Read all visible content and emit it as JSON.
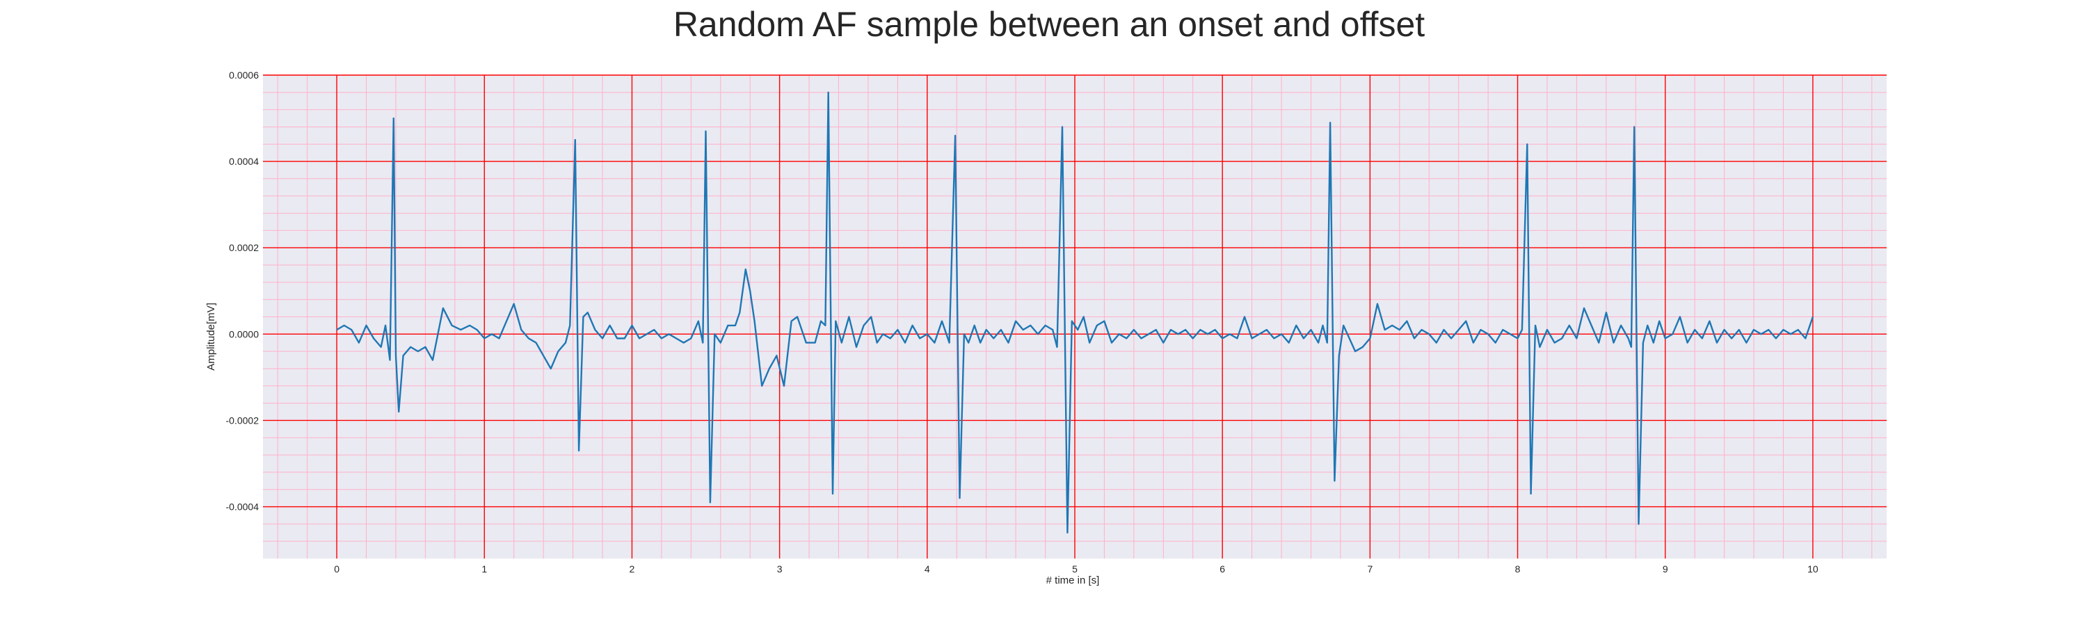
{
  "chart_data": {
    "type": "line",
    "title": "Random AF sample between an onset and offset",
    "xlabel": "# time in [s]",
    "ylabel": "Amplitude[mV]",
    "xlim": [
      -0.5,
      10.5
    ],
    "ylim": [
      -0.00052,
      0.0006
    ],
    "x_ticks": [
      0,
      1,
      2,
      3,
      4,
      5,
      6,
      7,
      8,
      9,
      10
    ],
    "x_tick_labels": [
      "0",
      "1",
      "2",
      "3",
      "4",
      "5",
      "6",
      "7",
      "8",
      "9",
      "10"
    ],
    "y_ticks": [
      0.0006,
      0.0004,
      0.0002,
      0.0,
      -0.0002,
      -0.0004
    ],
    "y_tick_labels": [
      "0.0006",
      "0.0004",
      "0.0002",
      "0.0000",
      "-0.0002",
      "-0.0004"
    ],
    "grid": true,
    "minor_grid": true,
    "legend": "none",
    "colors": {
      "line": "#1f77b4",
      "plot_background": "#eaeaf2",
      "major_grid": "#ff0000",
      "minor_grid": "#ffb0c8"
    },
    "series": [
      {
        "points": [
          [
            0.0,
            1e-05
          ],
          [
            0.05,
            2e-05
          ],
          [
            0.1,
            1e-05
          ],
          [
            0.15,
            -2e-05
          ],
          [
            0.2,
            2e-05
          ],
          [
            0.25,
            -1e-05
          ],
          [
            0.3,
            -3e-05
          ],
          [
            0.33,
            2e-05
          ],
          [
            0.36,
            -6e-05
          ],
          [
            0.385,
            0.0005
          ],
          [
            0.4,
            -5e-05
          ],
          [
            0.42,
            -0.00018
          ],
          [
            0.45,
            -5e-05
          ],
          [
            0.5,
            -3e-05
          ],
          [
            0.55,
            -4e-05
          ],
          [
            0.6,
            -3e-05
          ],
          [
            0.65,
            -6e-05
          ],
          [
            0.72,
            6e-05
          ],
          [
            0.78,
            2e-05
          ],
          [
            0.84,
            1e-05
          ],
          [
            0.9,
            2e-05
          ],
          [
            0.95,
            1e-05
          ],
          [
            1.0,
            -1e-05
          ],
          [
            1.05,
            0.0
          ],
          [
            1.1,
            -1e-05
          ],
          [
            1.15,
            3e-05
          ],
          [
            1.2,
            7e-05
          ],
          [
            1.25,
            1e-05
          ],
          [
            1.3,
            -1e-05
          ],
          [
            1.35,
            -2e-05
          ],
          [
            1.4,
            -5e-05
          ],
          [
            1.45,
            -8e-05
          ],
          [
            1.5,
            -4e-05
          ],
          [
            1.55,
            -2e-05
          ],
          [
            1.58,
            2e-05
          ],
          [
            1.615,
            0.00045
          ],
          [
            1.64,
            -0.00027
          ],
          [
            1.67,
            4e-05
          ],
          [
            1.7,
            5e-05
          ],
          [
            1.75,
            1e-05
          ],
          [
            1.8,
            -1e-05
          ],
          [
            1.85,
            2e-05
          ],
          [
            1.9,
            -1e-05
          ],
          [
            1.95,
            -1e-05
          ],
          [
            2.0,
            2e-05
          ],
          [
            2.05,
            -1e-05
          ],
          [
            2.1,
            0.0
          ],
          [
            2.15,
            1e-05
          ],
          [
            2.2,
            -1e-05
          ],
          [
            2.25,
            0.0
          ],
          [
            2.3,
            -1e-05
          ],
          [
            2.35,
            -2e-05
          ],
          [
            2.4,
            -1e-05
          ],
          [
            2.45,
            3e-05
          ],
          [
            2.48,
            -2e-05
          ],
          [
            2.5,
            0.00047
          ],
          [
            2.53,
            -0.00039
          ],
          [
            2.56,
            0.0
          ],
          [
            2.6,
            -2e-05
          ],
          [
            2.65,
            2e-05
          ],
          [
            2.7,
            2e-05
          ],
          [
            2.73,
            5e-05
          ],
          [
            2.77,
            0.00015
          ],
          [
            2.8,
            0.0001
          ],
          [
            2.83,
            3e-05
          ],
          [
            2.88,
            -0.00012
          ],
          [
            2.93,
            -8e-05
          ],
          [
            2.98,
            -5e-05
          ],
          [
            3.03,
            -0.00012
          ],
          [
            3.08,
            3e-05
          ],
          [
            3.12,
            4e-05
          ],
          [
            3.18,
            -2e-05
          ],
          [
            3.24,
            -2e-05
          ],
          [
            3.28,
            3e-05
          ],
          [
            3.31,
            2e-05
          ],
          [
            3.33,
            0.00056
          ],
          [
            3.36,
            -0.00037
          ],
          [
            3.38,
            3e-05
          ],
          [
            3.42,
            -2e-05
          ],
          [
            3.47,
            4e-05
          ],
          [
            3.52,
            -3e-05
          ],
          [
            3.57,
            2e-05
          ],
          [
            3.62,
            4e-05
          ],
          [
            3.66,
            -2e-05
          ],
          [
            3.7,
            0.0
          ],
          [
            3.75,
            -1e-05
          ],
          [
            3.8,
            1e-05
          ],
          [
            3.85,
            -2e-05
          ],
          [
            3.9,
            2e-05
          ],
          [
            3.95,
            -1e-05
          ],
          [
            4.0,
            0.0
          ],
          [
            4.05,
            -2e-05
          ],
          [
            4.1,
            3e-05
          ],
          [
            4.15,
            -2e-05
          ],
          [
            4.19,
            0.00046
          ],
          [
            4.22,
            -0.00038
          ],
          [
            4.25,
            0.0
          ],
          [
            4.28,
            -2e-05
          ],
          [
            4.32,
            2e-05
          ],
          [
            4.36,
            -2e-05
          ],
          [
            4.4,
            1e-05
          ],
          [
            4.45,
            -1e-05
          ],
          [
            4.5,
            1e-05
          ],
          [
            4.55,
            -2e-05
          ],
          [
            4.6,
            3e-05
          ],
          [
            4.65,
            1e-05
          ],
          [
            4.7,
            2e-05
          ],
          [
            4.75,
            0.0
          ],
          [
            4.8,
            2e-05
          ],
          [
            4.85,
            1e-05
          ],
          [
            4.88,
            -3e-05
          ],
          [
            4.915,
            0.00048
          ],
          [
            4.95,
            -0.00046
          ],
          [
            4.98,
            3e-05
          ],
          [
            5.02,
            1e-05
          ],
          [
            5.06,
            4e-05
          ],
          [
            5.1,
            -2e-05
          ],
          [
            5.15,
            2e-05
          ],
          [
            5.2,
            3e-05
          ],
          [
            5.25,
            -2e-05
          ],
          [
            5.3,
            0.0
          ],
          [
            5.35,
            -1e-05
          ],
          [
            5.4,
            1e-05
          ],
          [
            5.45,
            -1e-05
          ],
          [
            5.5,
            0.0
          ],
          [
            5.55,
            1e-05
          ],
          [
            5.6,
            -2e-05
          ],
          [
            5.65,
            1e-05
          ],
          [
            5.7,
            0.0
          ],
          [
            5.75,
            1e-05
          ],
          [
            5.8,
            -1e-05
          ],
          [
            5.85,
            1e-05
          ],
          [
            5.9,
            0.0
          ],
          [
            5.95,
            1e-05
          ],
          [
            6.0,
            -1e-05
          ],
          [
            6.05,
            0.0
          ],
          [
            6.1,
            -1e-05
          ],
          [
            6.15,
            4e-05
          ],
          [
            6.2,
            -1e-05
          ],
          [
            6.25,
            0.0
          ],
          [
            6.3,
            1e-05
          ],
          [
            6.35,
            -1e-05
          ],
          [
            6.4,
            0.0
          ],
          [
            6.45,
            -2e-05
          ],
          [
            6.5,
            2e-05
          ],
          [
            6.55,
            -1e-05
          ],
          [
            6.6,
            1e-05
          ],
          [
            6.65,
            -2e-05
          ],
          [
            6.68,
            2e-05
          ],
          [
            6.71,
            -2e-05
          ],
          [
            6.73,
            0.00049
          ],
          [
            6.76,
            -0.00034
          ],
          [
            6.79,
            -5e-05
          ],
          [
            6.82,
            2e-05
          ],
          [
            6.86,
            -1e-05
          ],
          [
            6.9,
            -4e-05
          ],
          [
            6.95,
            -3e-05
          ],
          [
            7.0,
            -1e-05
          ],
          [
            7.05,
            7e-05
          ],
          [
            7.1,
            1e-05
          ],
          [
            7.15,
            2e-05
          ],
          [
            7.2,
            1e-05
          ],
          [
            7.25,
            3e-05
          ],
          [
            7.3,
            -1e-05
          ],
          [
            7.35,
            1e-05
          ],
          [
            7.4,
            0.0
          ],
          [
            7.45,
            -2e-05
          ],
          [
            7.5,
            1e-05
          ],
          [
            7.55,
            -1e-05
          ],
          [
            7.6,
            1e-05
          ],
          [
            7.65,
            3e-05
          ],
          [
            7.7,
            -2e-05
          ],
          [
            7.75,
            1e-05
          ],
          [
            7.8,
            0.0
          ],
          [
            7.85,
            -2e-05
          ],
          [
            7.9,
            1e-05
          ],
          [
            7.95,
            0.0
          ],
          [
            8.0,
            -1e-05
          ],
          [
            8.03,
            1e-05
          ],
          [
            8.065,
            0.00044
          ],
          [
            8.09,
            -0.00037
          ],
          [
            8.12,
            2e-05
          ],
          [
            8.15,
            -3e-05
          ],
          [
            8.2,
            1e-05
          ],
          [
            8.25,
            -2e-05
          ],
          [
            8.3,
            -1e-05
          ],
          [
            8.35,
            2e-05
          ],
          [
            8.4,
            -1e-05
          ],
          [
            8.45,
            6e-05
          ],
          [
            8.5,
            2e-05
          ],
          [
            8.55,
            -2e-05
          ],
          [
            8.6,
            5e-05
          ],
          [
            8.65,
            -2e-05
          ],
          [
            8.7,
            2e-05
          ],
          [
            8.75,
            -1e-05
          ],
          [
            8.77,
            -3e-05
          ],
          [
            8.79,
            0.00048
          ],
          [
            8.82,
            -0.00044
          ],
          [
            8.85,
            -2e-05
          ],
          [
            8.88,
            2e-05
          ],
          [
            8.92,
            -2e-05
          ],
          [
            8.96,
            3e-05
          ],
          [
            9.0,
            -1e-05
          ],
          [
            9.05,
            0.0
          ],
          [
            9.1,
            4e-05
          ],
          [
            9.15,
            -2e-05
          ],
          [
            9.2,
            1e-05
          ],
          [
            9.25,
            -1e-05
          ],
          [
            9.3,
            3e-05
          ],
          [
            9.35,
            -2e-05
          ],
          [
            9.4,
            1e-05
          ],
          [
            9.45,
            -1e-05
          ],
          [
            9.5,
            1e-05
          ],
          [
            9.55,
            -2e-05
          ],
          [
            9.6,
            1e-05
          ],
          [
            9.65,
            0.0
          ],
          [
            9.7,
            1e-05
          ],
          [
            9.75,
            -1e-05
          ],
          [
            9.8,
            1e-05
          ],
          [
            9.85,
            0.0
          ],
          [
            9.9,
            1e-05
          ],
          [
            9.95,
            -1e-05
          ],
          [
            10.0,
            4e-05
          ]
        ]
      }
    ]
  }
}
